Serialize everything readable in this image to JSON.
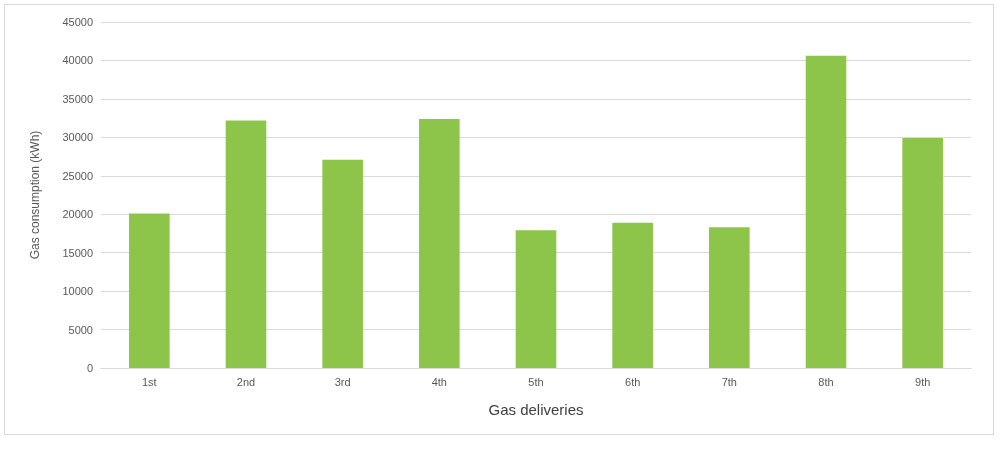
{
  "chart_data": {
    "type": "bar",
    "xlabel": "Gas deliveries",
    "ylabel": "Gas consumption (kWh)",
    "categories": [
      "1st",
      "2nd",
      "3rd",
      "4th",
      "5th",
      "6th",
      "7th",
      "8th",
      "9th"
    ],
    "values": [
      20100,
      32200,
      27100,
      32400,
      17900,
      18900,
      18300,
      40600,
      29900
    ],
    "color": "#8dc54a",
    "ylim": [
      0,
      45000
    ],
    "yticks": [
      0,
      5000,
      10000,
      15000,
      20000,
      25000,
      30000,
      35000,
      40000,
      45000
    ],
    "grid": "y"
  }
}
